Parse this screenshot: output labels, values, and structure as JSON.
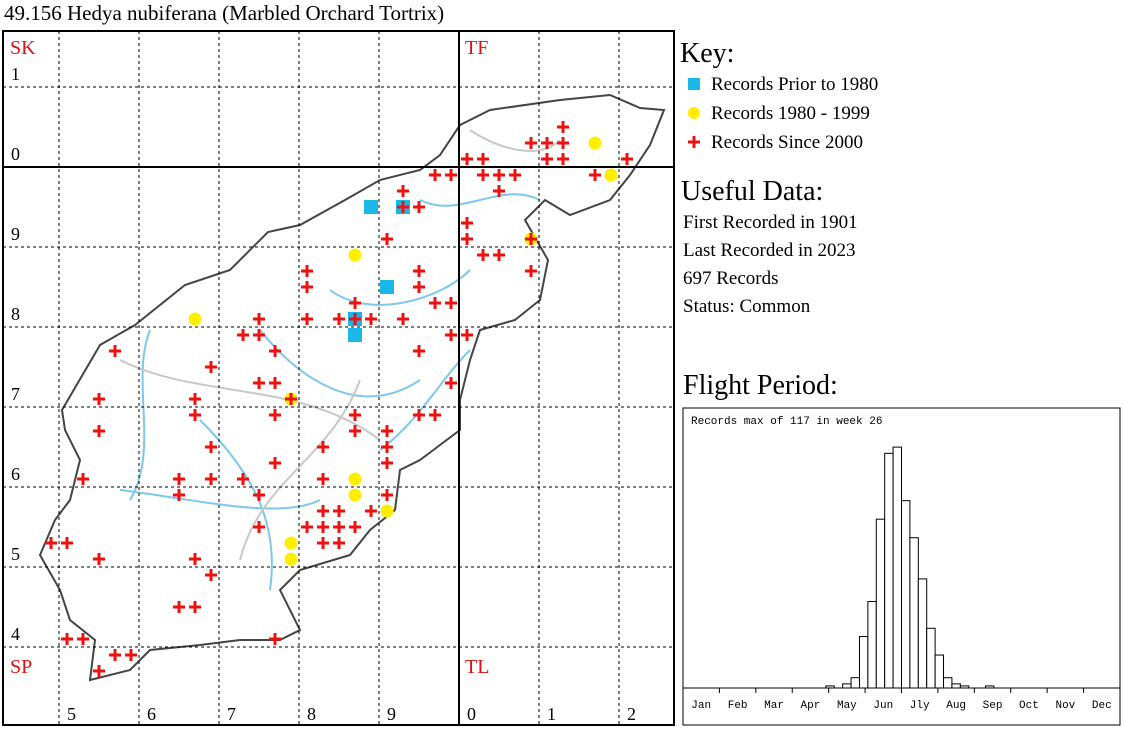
{
  "title": "49.156 Hedya nubiferana (Marbled Orchard Tortrix)",
  "map": {
    "square_labels": [
      "SK",
      "TF",
      "SP",
      "TL"
    ],
    "row_labels": [
      "1",
      "0",
      "9",
      "8",
      "7",
      "6",
      "5",
      "4"
    ],
    "column_labels": [
      "5",
      "6",
      "7",
      "8",
      "9",
      "0",
      "1",
      "2"
    ]
  },
  "key": {
    "title": "Key:",
    "items": [
      {
        "label": "Records Prior to 1980",
        "color": "#1ab8e8"
      },
      {
        "label": "Records 1980 - 1999",
        "color": "#ffee00"
      },
      {
        "label": "Records Since 2000",
        "color": "#ee1111"
      }
    ]
  },
  "useful_data": {
    "title": "Useful Data:",
    "lines": [
      "First Recorded in 1901",
      "Last Recorded in 2023",
      "697 Records",
      "Status: Common"
    ]
  },
  "chart_data": {
    "type": "bar",
    "title": "Flight Period:",
    "annotation": "Records max of 117 in week 26",
    "months": [
      "Jan",
      "Feb",
      "Mar",
      "Apr",
      "May",
      "Jun",
      "Jly",
      "Aug",
      "Sep",
      "Oct",
      "Nov",
      "Dec"
    ],
    "values": [
      0,
      0,
      0,
      0,
      0,
      0,
      0,
      0,
      0,
      0,
      0,
      0,
      0,
      0,
      0,
      0,
      0,
      1,
      0,
      2,
      5,
      25,
      42,
      82,
      114,
      117,
      91,
      73,
      53,
      29,
      16,
      5,
      2,
      1,
      0,
      0,
      1,
      0,
      0,
      0,
      0,
      0,
      0,
      0,
      0,
      0,
      0,
      0,
      0,
      0,
      0,
      0
    ],
    "ylim": [
      0,
      136
    ],
    "color": "#ffffff"
  }
}
